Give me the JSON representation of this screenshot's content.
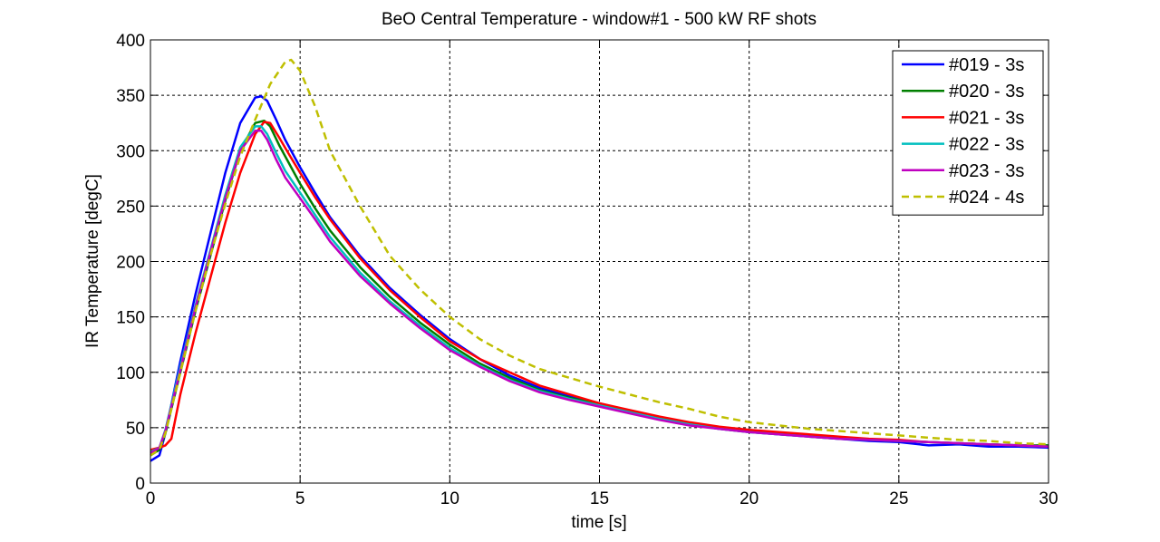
{
  "chart_data": {
    "type": "line",
    "title": "BeO Central Temperature - window#1 - 500 kW RF shots",
    "xlabel": "time [s]",
    "ylabel": "IR Temperature [degC]",
    "xlim": [
      0,
      30
    ],
    "ylim": [
      0,
      400
    ],
    "xticks": [
      0,
      5,
      10,
      15,
      20,
      25,
      30
    ],
    "yticks": [
      0,
      50,
      100,
      150,
      200,
      250,
      300,
      350,
      400
    ],
    "grid": true,
    "legend_position": "top-right",
    "series": [
      {
        "name": "#019 - 3s",
        "color": "#0000ff",
        "style": "solid",
        "x": [
          0,
          0.3,
          0.5,
          1.0,
          1.5,
          2.0,
          2.5,
          3.0,
          3.5,
          3.7,
          3.9,
          4.2,
          4.5,
          5,
          5.5,
          6,
          7,
          8,
          9,
          10,
          11,
          12,
          13,
          14,
          15,
          16,
          17,
          18,
          19,
          20,
          21,
          22,
          23,
          24,
          25,
          26,
          27,
          28,
          29,
          30
        ],
        "y": [
          20,
          25,
          45,
          110,
          170,
          225,
          280,
          325,
          348,
          349,
          345,
          328,
          310,
          285,
          262,
          240,
          205,
          176,
          152,
          130,
          112,
          97,
          86,
          78,
          72,
          65,
          58,
          53,
          49,
          46,
          44,
          42,
          40,
          38,
          37,
          34,
          35,
          33,
          33,
          32
        ]
      },
      {
        "name": "#020 - 3s",
        "color": "#007f00",
        "style": "solid",
        "x": [
          0,
          0.3,
          0.5,
          1.0,
          1.5,
          2.0,
          2.5,
          3.0,
          3.5,
          3.8,
          4.0,
          4.3,
          4.6,
          5,
          5.5,
          6,
          7,
          8,
          9,
          10,
          11,
          12,
          13,
          14,
          15,
          16,
          17,
          18,
          19,
          20,
          21,
          22,
          23,
          24,
          25,
          26,
          27,
          28,
          29,
          30
        ],
        "y": [
          25,
          30,
          45,
          100,
          155,
          205,
          255,
          300,
          325,
          327,
          322,
          305,
          290,
          270,
          248,
          228,
          195,
          168,
          145,
          125,
          108,
          95,
          84,
          77,
          71,
          64,
          58,
          53,
          50,
          47,
          45,
          43,
          41,
          39,
          38,
          37,
          36,
          35,
          34,
          34
        ]
      },
      {
        "name": "#021 - 3s",
        "color": "#ff0000",
        "style": "solid",
        "x": [
          0,
          0.3,
          0.5,
          0.7,
          1.0,
          1.5,
          2.0,
          2.5,
          3.0,
          3.5,
          3.8,
          4.0,
          4.3,
          4.6,
          5,
          5.5,
          6,
          7,
          8,
          9,
          10,
          11,
          12,
          13,
          14,
          15,
          16,
          17,
          18,
          19,
          20,
          21,
          22,
          23,
          24,
          25,
          26,
          27,
          28,
          29,
          30
        ],
        "y": [
          30,
          32,
          34,
          40,
          80,
          135,
          185,
          235,
          280,
          315,
          326,
          325,
          312,
          298,
          280,
          258,
          238,
          203,
          174,
          150,
          128,
          112,
          100,
          88,
          80,
          72,
          66,
          60,
          55,
          51,
          48,
          46,
          44,
          42,
          40,
          39,
          37,
          36,
          35,
          34,
          33
        ]
      },
      {
        "name": "#022 - 3s",
        "color": "#00bfbf",
        "style": "solid",
        "x": [
          0,
          0.3,
          0.5,
          1.0,
          1.5,
          2.0,
          2.5,
          3.0,
          3.5,
          3.7,
          3.9,
          4.2,
          4.5,
          5,
          5.5,
          6,
          7,
          8,
          9,
          10,
          11,
          12,
          13,
          14,
          15,
          16,
          17,
          18,
          19,
          20,
          21,
          22,
          23,
          24,
          25,
          26,
          27,
          28,
          29,
          30
        ],
        "y": [
          28,
          32,
          48,
          105,
          160,
          210,
          260,
          303,
          322,
          322,
          315,
          298,
          282,
          262,
          242,
          222,
          190,
          164,
          142,
          122,
          106,
          93,
          83,
          76,
          70,
          64,
          58,
          53,
          49,
          46,
          44,
          42,
          40,
          39,
          38,
          37,
          36,
          35,
          34,
          33
        ]
      },
      {
        "name": "#023 - 3s",
        "color": "#bf00bf",
        "style": "solid",
        "x": [
          0,
          0.3,
          0.5,
          1.0,
          1.5,
          2.0,
          2.5,
          3.0,
          3.5,
          3.7,
          3.9,
          4.2,
          4.5,
          5,
          5.5,
          6,
          7,
          8,
          9,
          10,
          11,
          12,
          13,
          14,
          15,
          16,
          17,
          18,
          19,
          20,
          21,
          22,
          23,
          24,
          25,
          26,
          27,
          28,
          29,
          30
        ],
        "y": [
          27,
          32,
          47,
          102,
          158,
          208,
          257,
          300,
          318,
          318,
          310,
          292,
          276,
          257,
          238,
          218,
          187,
          162,
          140,
          120,
          105,
          92,
          82,
          75,
          69,
          63,
          57,
          52,
          49,
          46,
          44,
          42,
          40,
          39,
          38,
          37,
          36,
          35,
          34,
          33
        ]
      },
      {
        "name": "#024 - 4s",
        "color": "#bfbf00",
        "style": "dashed",
        "x": [
          0,
          0.3,
          0.5,
          1.0,
          1.5,
          2.0,
          2.5,
          3.0,
          3.5,
          4.0,
          4.5,
          4.7,
          5.0,
          5.5,
          6,
          7,
          8,
          9,
          10,
          11,
          12,
          13,
          14,
          15,
          16,
          17,
          18,
          19,
          20,
          21,
          22,
          23,
          24,
          25,
          26,
          27,
          28,
          29,
          30
        ],
        "y": [
          25,
          30,
          45,
          100,
          155,
          205,
          252,
          295,
          328,
          360,
          380,
          382,
          372,
          340,
          300,
          250,
          205,
          175,
          150,
          130,
          115,
          103,
          95,
          87,
          80,
          73,
          67,
          60,
          55,
          52,
          49,
          47,
          45,
          43,
          41,
          39,
          38,
          36,
          35
        ]
      }
    ]
  }
}
